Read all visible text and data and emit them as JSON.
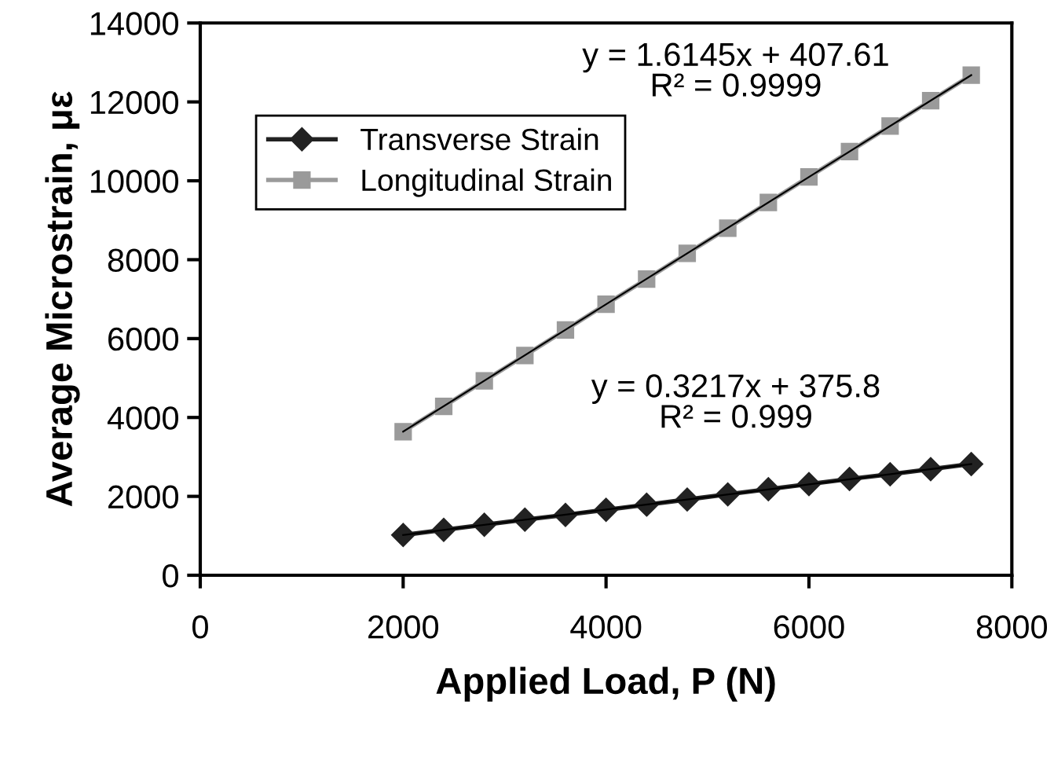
{
  "chart_data": {
    "type": "line",
    "xlabel": "Applied Load, P (N)",
    "ylabel": "Average Microstrain, με",
    "xlim": [
      0,
      8000
    ],
    "xticks": [
      0,
      2000,
      4000,
      6000,
      8000
    ],
    "ylim": [
      0,
      14000
    ],
    "yticks": [
      0,
      2000,
      4000,
      6000,
      8000,
      10000,
      12000,
      14000
    ],
    "grid": false,
    "legend": "top left",
    "series": [
      {
        "name": "Transverse Strain",
        "color": "#222222",
        "marker": "diamond",
        "x": [
          2000,
          2400,
          2800,
          3200,
          3600,
          4000,
          4400,
          4800,
          5200,
          5600,
          6000,
          6400,
          6800,
          7200,
          7600
        ],
        "values": [
          1020,
          1150,
          1280,
          1410,
          1530,
          1660,
          1790,
          1920,
          2050,
          2180,
          2310,
          2440,
          2560,
          2690,
          2820
        ]
      },
      {
        "name": "Longitudinal Strain",
        "color": "#9a9a9a",
        "marker": "square",
        "x": [
          2000,
          2400,
          2800,
          3200,
          3600,
          4000,
          4400,
          4800,
          5200,
          5600,
          6000,
          6400,
          6800,
          7200,
          7600
        ],
        "values": [
          3640,
          4280,
          4930,
          5570,
          6220,
          6870,
          7510,
          8160,
          8800,
          9450,
          10100,
          10740,
          11390,
          12030,
          12680
        ]
      },
      {
        "color": "#000000",
        "marker": "none",
        "x": [
          2000,
          7600
        ],
        "values": [
          1020,
          2820
        ]
      },
      {
        "color": "#000000",
        "marker": "none",
        "x": [
          2000,
          7600
        ],
        "values": [
          3640,
          12680
        ]
      }
    ],
    "annotations": [
      "y = 1.6145x + 407.61\nR² = 0.9999",
      "y = 0.3217x + 375.8\nR² = 0.999"
    ]
  }
}
